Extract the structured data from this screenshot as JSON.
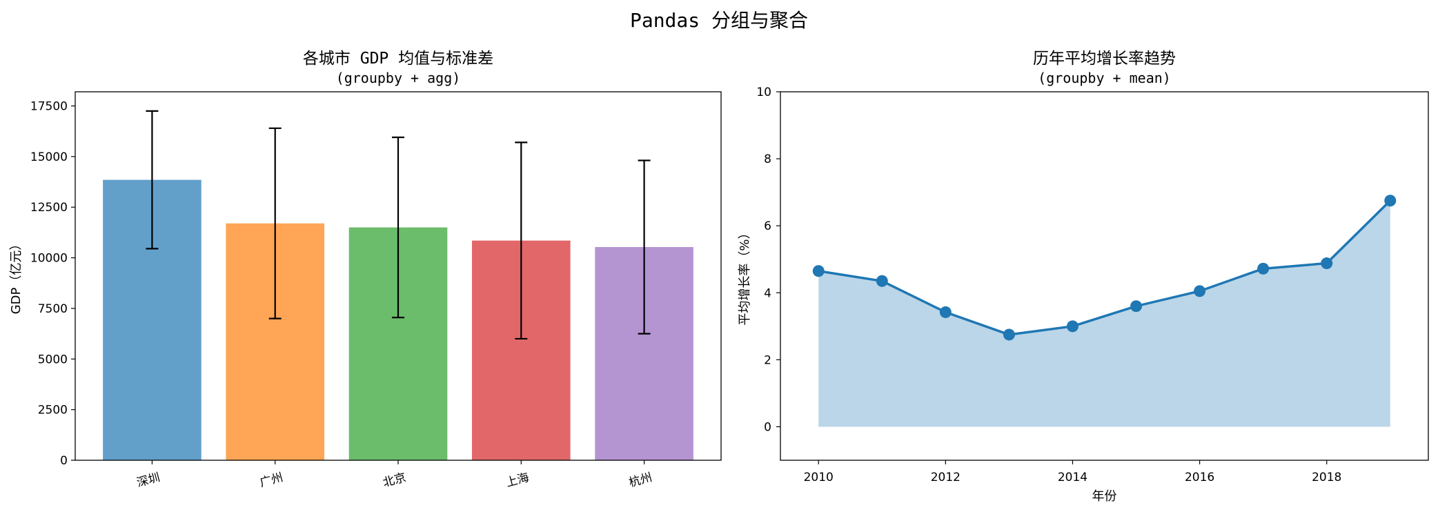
{
  "figure": {
    "suptitle": "Pandas 分组与聚合"
  },
  "chart_data": [
    {
      "type": "bar",
      "title": "各城市 GDP 均值与标准差",
      "subtitle": "(groupby + agg)",
      "xlabel": "",
      "ylabel": "GDP（亿元）",
      "categories": [
        "深圳",
        "广州",
        "北京",
        "上海",
        "杭州"
      ],
      "values": [
        13850,
        11700,
        11500,
        10850,
        10530
      ],
      "error": [
        3400,
        4700,
        4450,
        4850,
        4280
      ],
      "colors": [
        "#1f77b4",
        "#ff7f0e",
        "#2ca02c",
        "#d62728",
        "#9467bd"
      ],
      "bar_alpha": 0.7,
      "ylim": [
        0,
        18200
      ],
      "yticks": [
        0,
        2500,
        5000,
        7500,
        10000,
        12500,
        15000,
        17500
      ],
      "grid": false
    },
    {
      "type": "line",
      "title": "历年平均增长率趋势",
      "subtitle": "(groupby + mean)",
      "xlabel": "年份",
      "ylabel": "平均增长率（%）",
      "x": [
        2010,
        2011,
        2012,
        2013,
        2014,
        2015,
        2016,
        2017,
        2018,
        2019
      ],
      "y": [
        4.65,
        4.35,
        3.42,
        2.75,
        3.0,
        3.6,
        4.05,
        4.72,
        4.88,
        6.75
      ],
      "color": "#1f77b4",
      "fill_alpha": 0.3,
      "xlim": [
        2009.4,
        2019.6
      ],
      "ylim": [
        -1,
        10
      ],
      "xticks": [
        2010,
        2012,
        2014,
        2016,
        2018
      ],
      "yticks": [
        0,
        2,
        4,
        6,
        8,
        10
      ],
      "grid": false
    }
  ]
}
